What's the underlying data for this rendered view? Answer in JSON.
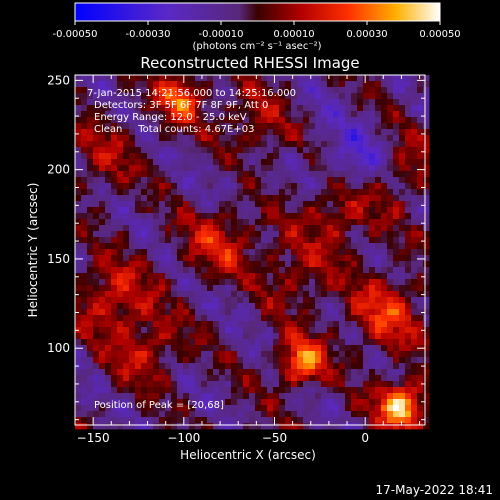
{
  "colorbar": {
    "tick_labels": [
      "-0.00050",
      "-0.00030",
      "-0.00010",
      "0.00010",
      "0.00030",
      "0.00050"
    ],
    "units_label": "(photons cm⁻² s⁻¹ asec⁻²)",
    "range": [
      -0.0005,
      0.0005
    ]
  },
  "chart_data": {
    "type": "heatmap",
    "title": "Reconstructed RHESSI Image",
    "xlabel": "Heliocentric X (arcsec)",
    "ylabel": "Heliocentric Y (arcsec)",
    "xlim": [
      -160,
      33
    ],
    "ylim": [
      57,
      253
    ],
    "x_ticks": [
      -150,
      -100,
      -50,
      0
    ],
    "y_ticks": [
      100,
      150,
      200,
      250
    ],
    "x_tick_labels": [
      "−150",
      "−100",
      "−50",
      "0"
    ],
    "y_tick_labels": [
      "100",
      "150",
      "200",
      "250"
    ],
    "annotations": [
      "7-Jan-2015 14:21:56.000 to 14:25:16.000",
      "Detectors: 3F 5F 6F 7F 8F 9F, Att 0",
      "Energy Range: 12.0 - 25.0 keV",
      "Clean     Total counts: 4.67E+03"
    ],
    "peak_label": "Position of Peak = [20,68]",
    "peak_position": [
      20,
      68
    ],
    "hot_spots": [
      {
        "x": 20,
        "y": 68,
        "value": 0.0005
      },
      {
        "x": -35,
        "y": 92,
        "value": 0.00038
      },
      {
        "x": -102,
        "y": 240,
        "value": 0.00032
      },
      {
        "x": 12,
        "y": 120,
        "value": 0.00022
      },
      {
        "x": -140,
        "y": 130,
        "value": 0.0002
      },
      {
        "x": -80,
        "y": 160,
        "value": 0.00018
      },
      {
        "x": -15,
        "y": 175,
        "value": 0.00016
      },
      {
        "x": -120,
        "y": 100,
        "value": 0.00015
      },
      {
        "x": 20,
        "y": 200,
        "value": 0.00012
      },
      {
        "x": -60,
        "y": 225,
        "value": 0.00012
      },
      {
        "x": -145,
        "y": 205,
        "value": 0.0001
      },
      {
        "x": -40,
        "y": 140,
        "value": 0.00012
      }
    ],
    "cold_spots": [
      {
        "x": -5,
        "y": 205,
        "value": -0.00028
      },
      {
        "x": -75,
        "y": 195,
        "value": -0.00012
      },
      {
        "x": -65,
        "y": 132,
        "value": -0.0001
      },
      {
        "x": -135,
        "y": 180,
        "value": -8e-05
      },
      {
        "x": -25,
        "y": 235,
        "value": -0.0001
      },
      {
        "x": -100,
        "y": 75,
        "value": -8e-05
      }
    ]
  },
  "footer": {
    "date_stamp": "17-May-2022 18:41"
  }
}
